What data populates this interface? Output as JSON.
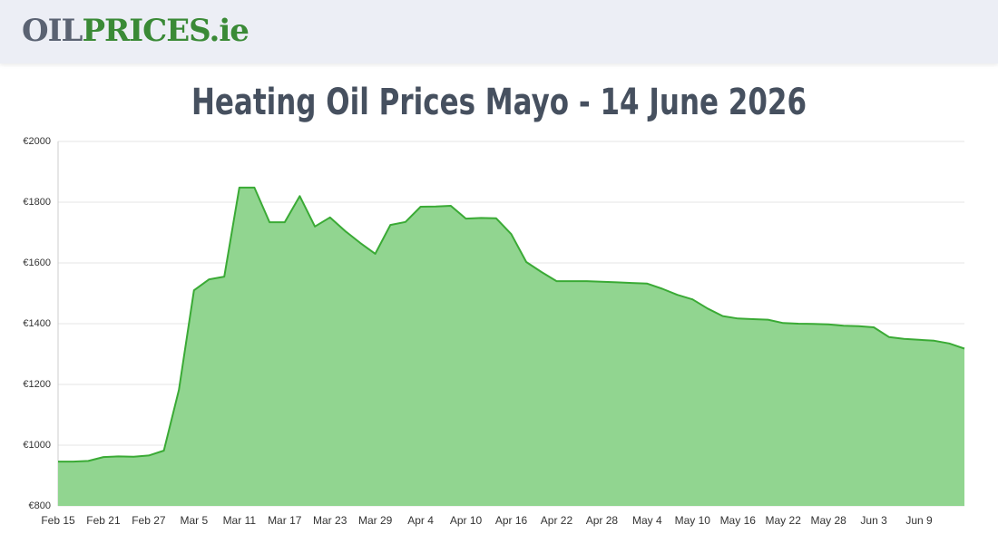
{
  "header": {
    "logo_dark": "OIL",
    "logo_green": "PRICES.ie"
  },
  "chart_data": {
    "type": "area",
    "title": "Heating Oil Prices Mayo - 14 June 2026",
    "categories": [
      "Feb 15",
      null,
      null,
      "Feb 21",
      null,
      null,
      "Feb 27",
      null,
      null,
      "Mar 5",
      null,
      null,
      "Mar 11",
      null,
      null,
      "Mar 17",
      null,
      null,
      "Mar 23",
      null,
      null,
      "Mar 29",
      null,
      null,
      "Apr 4",
      null,
      null,
      "Apr 10",
      null,
      null,
      "Apr 16",
      null,
      null,
      "Apr 22",
      null,
      null,
      "Apr 28",
      null,
      null,
      "May 4",
      null,
      null,
      "May 10",
      null,
      null,
      "May 16",
      null,
      null,
      "May 22",
      null,
      null,
      "May 28",
      null,
      null,
      "Jun 3",
      null,
      null,
      "Jun 9",
      null,
      null,
      null
    ],
    "values": [
      946,
      946,
      948,
      961,
      963,
      962,
      966,
      982,
      1182,
      1510,
      1546,
      1555,
      1848,
      1848,
      1734,
      1734,
      1820,
      1720,
      1750,
      1705,
      1666,
      1630,
      1725,
      1735,
      1785,
      1786,
      1788,
      1746,
      1748,
      1747,
      1695,
      1603,
      1570,
      1540,
      1540,
      1540,
      1538,
      1536,
      1534,
      1532,
      1515,
      1495,
      1480,
      1450,
      1425,
      1417,
      1415,
      1413,
      1402,
      1400,
      1399,
      1398,
      1393,
      1392,
      1388,
      1356,
      1350,
      1347,
      1344,
      1335,
      1318
    ],
    "color": "#3aaa35",
    "fill": "#91d590",
    "ylim": [
      800,
      2000
    ],
    "yticks": [
      {
        "value": 800,
        "label": "€800"
      },
      {
        "value": 1000,
        "label": "€1000"
      },
      {
        "value": 1200,
        "label": "€1200"
      },
      {
        "value": 1400,
        "label": "€1400"
      },
      {
        "value": 1600,
        "label": "€1600"
      },
      {
        "value": 1800,
        "label": "€1800"
      },
      {
        "value": 2000,
        "label": "€2000"
      }
    ],
    "grid": true
  }
}
